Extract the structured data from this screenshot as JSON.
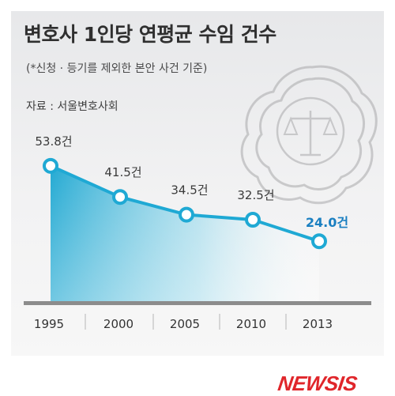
{
  "header": {
    "title": "변호사  1인당 연평균 수임 건수",
    "subtitle": "(*신청 · 등기를 제외한 본안 사건 기준)",
    "source": "자료 : 서울변호사회"
  },
  "branding": {
    "logo_text": "NEWSIS",
    "logo_color": "#e0262b"
  },
  "emblem": {
    "icon": "scales-of-justice-seal-icon"
  },
  "colors": {
    "line": "#1fa9d4",
    "marker_fill": "#ffffff",
    "label": "#3a3a3a",
    "highlight_label": "#1a7fc1",
    "axis": "#8c8c8c"
  },
  "chart_data": {
    "type": "area",
    "categories": [
      "1995",
      "2000",
      "2005",
      "2010",
      "2013"
    ],
    "values": [
      53.8,
      41.5,
      34.5,
      32.5,
      24.0
    ],
    "data_labels": [
      "53.8건",
      "41.5건",
      "34.5건",
      "32.5건",
      "24.0건"
    ],
    "highlight_index": 4,
    "title": "변호사  1인당 연평균 수임 건수",
    "ylim": [
      0,
      60
    ],
    "grid": false,
    "legend": "none"
  }
}
